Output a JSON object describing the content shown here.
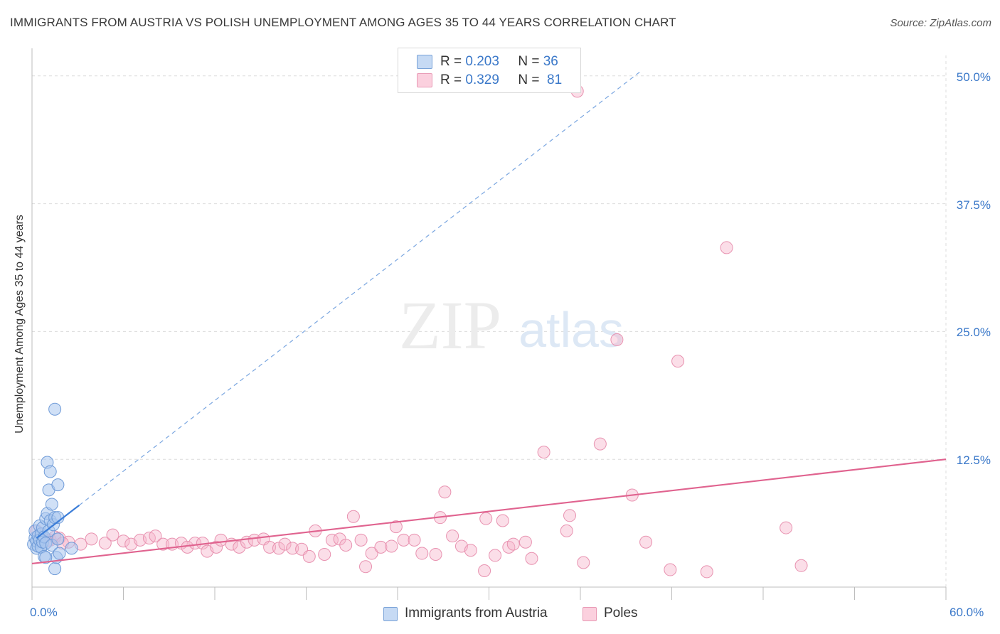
{
  "header": {
    "title": "IMMIGRANTS FROM AUSTRIA VS POLISH UNEMPLOYMENT AMONG AGES 35 TO 44 YEARS CORRELATION CHART",
    "source": "Source: ZipAtlas.com"
  },
  "watermark": {
    "zip": "ZIP",
    "atlas": "atlas"
  },
  "legend": {
    "series1": {
      "r_label": "R =",
      "r_value": "0.203",
      "n_label": "N =",
      "n_value": "36",
      "color": "#a9c7ee"
    },
    "series2": {
      "r_label": "R =",
      "r_value": "0.329",
      "n_label": "N =",
      "n_value": "81",
      "color": "#f6b6cb"
    }
  },
  "bottom_legend": {
    "series1": "Immigrants from Austria",
    "series2": "Poles"
  },
  "chart_data": {
    "type": "scatter",
    "title": "IMMIGRANTS FROM AUSTRIA VS POLISH UNEMPLOYMENT AMONG AGES 35 TO 44 YEARS CORRELATION CHART",
    "xlabel": "",
    "ylabel": "Unemployment Among Ages 35 to 44 years",
    "xlim": [
      0,
      60
    ],
    "ylim": [
      0,
      52
    ],
    "x_tick_labels": {
      "min": "0.0%",
      "max": "60.0%"
    },
    "y_ticks": [
      {
        "value": 12.5,
        "label": "12.5%"
      },
      {
        "value": 25.0,
        "label": "25.0%"
      },
      {
        "value": 37.5,
        "label": "37.5%"
      },
      {
        "value": 50.0,
        "label": "50.0%"
      }
    ],
    "series": [
      {
        "name": "Immigrants from Austria",
        "color": "#a9c7ee",
        "line_color": "#3b7dd8",
        "R": 0.203,
        "N": 36,
        "trend_solid": [
          [
            0.3,
            4.8
          ],
          [
            3.1,
            8.0
          ]
        ],
        "trend_dashed": [
          [
            3.1,
            8.0
          ],
          [
            40.0,
            50.5
          ]
        ],
        "points": [
          [
            0.1,
            4.2
          ],
          [
            0.2,
            4.8
          ],
          [
            0.2,
            5.5
          ],
          [
            0.3,
            3.8
          ],
          [
            0.3,
            4.5
          ],
          [
            0.4,
            5.0
          ],
          [
            0.4,
            4.0
          ],
          [
            0.5,
            6.0
          ],
          [
            0.5,
            4.6
          ],
          [
            0.6,
            5.2
          ],
          [
            0.6,
            3.9
          ],
          [
            0.7,
            4.4
          ],
          [
            0.7,
            5.8
          ],
          [
            0.8,
            4.9
          ],
          [
            0.8,
            3.0
          ],
          [
            0.9,
            6.7
          ],
          [
            0.9,
            4.3
          ],
          [
            1.0,
            12.2
          ],
          [
            1.0,
            7.2
          ],
          [
            1.1,
            9.5
          ],
          [
            1.1,
            5.5
          ],
          [
            1.2,
            11.3
          ],
          [
            1.2,
            6.5
          ],
          [
            1.3,
            8.1
          ],
          [
            1.3,
            4.1
          ],
          [
            1.4,
            6.1
          ],
          [
            1.5,
            6.8
          ],
          [
            1.5,
            1.8
          ],
          [
            1.6,
            2.9
          ],
          [
            1.7,
            4.7
          ],
          [
            1.7,
            6.8
          ],
          [
            1.5,
            17.4
          ],
          [
            1.7,
            10.0
          ],
          [
            1.8,
            3.3
          ],
          [
            2.6,
            3.8
          ],
          [
            0.9,
            2.9
          ]
        ]
      },
      {
        "name": "Poles",
        "color": "#f6b6cb",
        "line_color": "#e0638f",
        "R": 0.329,
        "N": 81,
        "trend_solid": [
          [
            0.0,
            2.3
          ],
          [
            60.0,
            12.5
          ]
        ],
        "points": [
          [
            0.3,
            5.5
          ],
          [
            0.6,
            4.8
          ],
          [
            1.2,
            4.6
          ],
          [
            1.8,
            4.8
          ],
          [
            2.4,
            4.4
          ],
          [
            3.2,
            4.2
          ],
          [
            3.9,
            4.7
          ],
          [
            4.8,
            4.3
          ],
          [
            5.3,
            5.1
          ],
          [
            6.0,
            4.5
          ],
          [
            6.5,
            4.2
          ],
          [
            7.1,
            4.6
          ],
          [
            7.7,
            4.8
          ],
          [
            8.1,
            5.0
          ],
          [
            8.6,
            4.2
          ],
          [
            9.2,
            4.2
          ],
          [
            9.8,
            4.3
          ],
          [
            10.2,
            3.9
          ],
          [
            10.7,
            4.3
          ],
          [
            11.2,
            4.3
          ],
          [
            11.5,
            3.5
          ],
          [
            12.1,
            3.9
          ],
          [
            12.4,
            4.6
          ],
          [
            13.1,
            4.2
          ],
          [
            13.6,
            3.9
          ],
          [
            14.1,
            4.4
          ],
          [
            14.6,
            4.6
          ],
          [
            15.2,
            4.7
          ],
          [
            15.6,
            3.9
          ],
          [
            16.2,
            3.8
          ],
          [
            16.6,
            4.2
          ],
          [
            17.1,
            3.8
          ],
          [
            17.7,
            3.7
          ],
          [
            18.2,
            3.0
          ],
          [
            18.6,
            5.5
          ],
          [
            19.2,
            3.2
          ],
          [
            19.7,
            4.6
          ],
          [
            20.2,
            4.7
          ],
          [
            20.6,
            4.1
          ],
          [
            21.1,
            6.9
          ],
          [
            21.6,
            4.6
          ],
          [
            21.9,
            2.0
          ],
          [
            22.3,
            3.3
          ],
          [
            22.9,
            3.9
          ],
          [
            23.6,
            4.0
          ],
          [
            23.9,
            5.9
          ],
          [
            24.4,
            4.6
          ],
          [
            25.1,
            4.6
          ],
          [
            25.6,
            3.3
          ],
          [
            26.5,
            3.2
          ],
          [
            26.8,
            6.8
          ],
          [
            27.1,
            9.3
          ],
          [
            27.6,
            5.0
          ],
          [
            28.2,
            4.0
          ],
          [
            28.8,
            3.6
          ],
          [
            29.7,
            1.6
          ],
          [
            29.8,
            6.7
          ],
          [
            30.4,
            3.1
          ],
          [
            30.9,
            6.5
          ],
          [
            31.3,
            3.9
          ],
          [
            31.6,
            4.2
          ],
          [
            32.4,
            4.4
          ],
          [
            32.8,
            2.8
          ],
          [
            33.6,
            13.2
          ],
          [
            35.1,
            5.5
          ],
          [
            35.3,
            7.0
          ],
          [
            36.2,
            2.4
          ],
          [
            37.3,
            14.0
          ],
          [
            38.4,
            24.2
          ],
          [
            39.4,
            9.0
          ],
          [
            40.3,
            4.4
          ],
          [
            41.9,
            1.7
          ],
          [
            42.4,
            22.1
          ],
          [
            44.3,
            1.5
          ],
          [
            45.6,
            33.2
          ],
          [
            49.5,
            5.8
          ],
          [
            50.5,
            2.1
          ],
          [
            35.8,
            48.5
          ],
          [
            1.0,
            4.5
          ],
          [
            1.5,
            4.9
          ],
          [
            2.0,
            4.3
          ]
        ]
      }
    ]
  }
}
